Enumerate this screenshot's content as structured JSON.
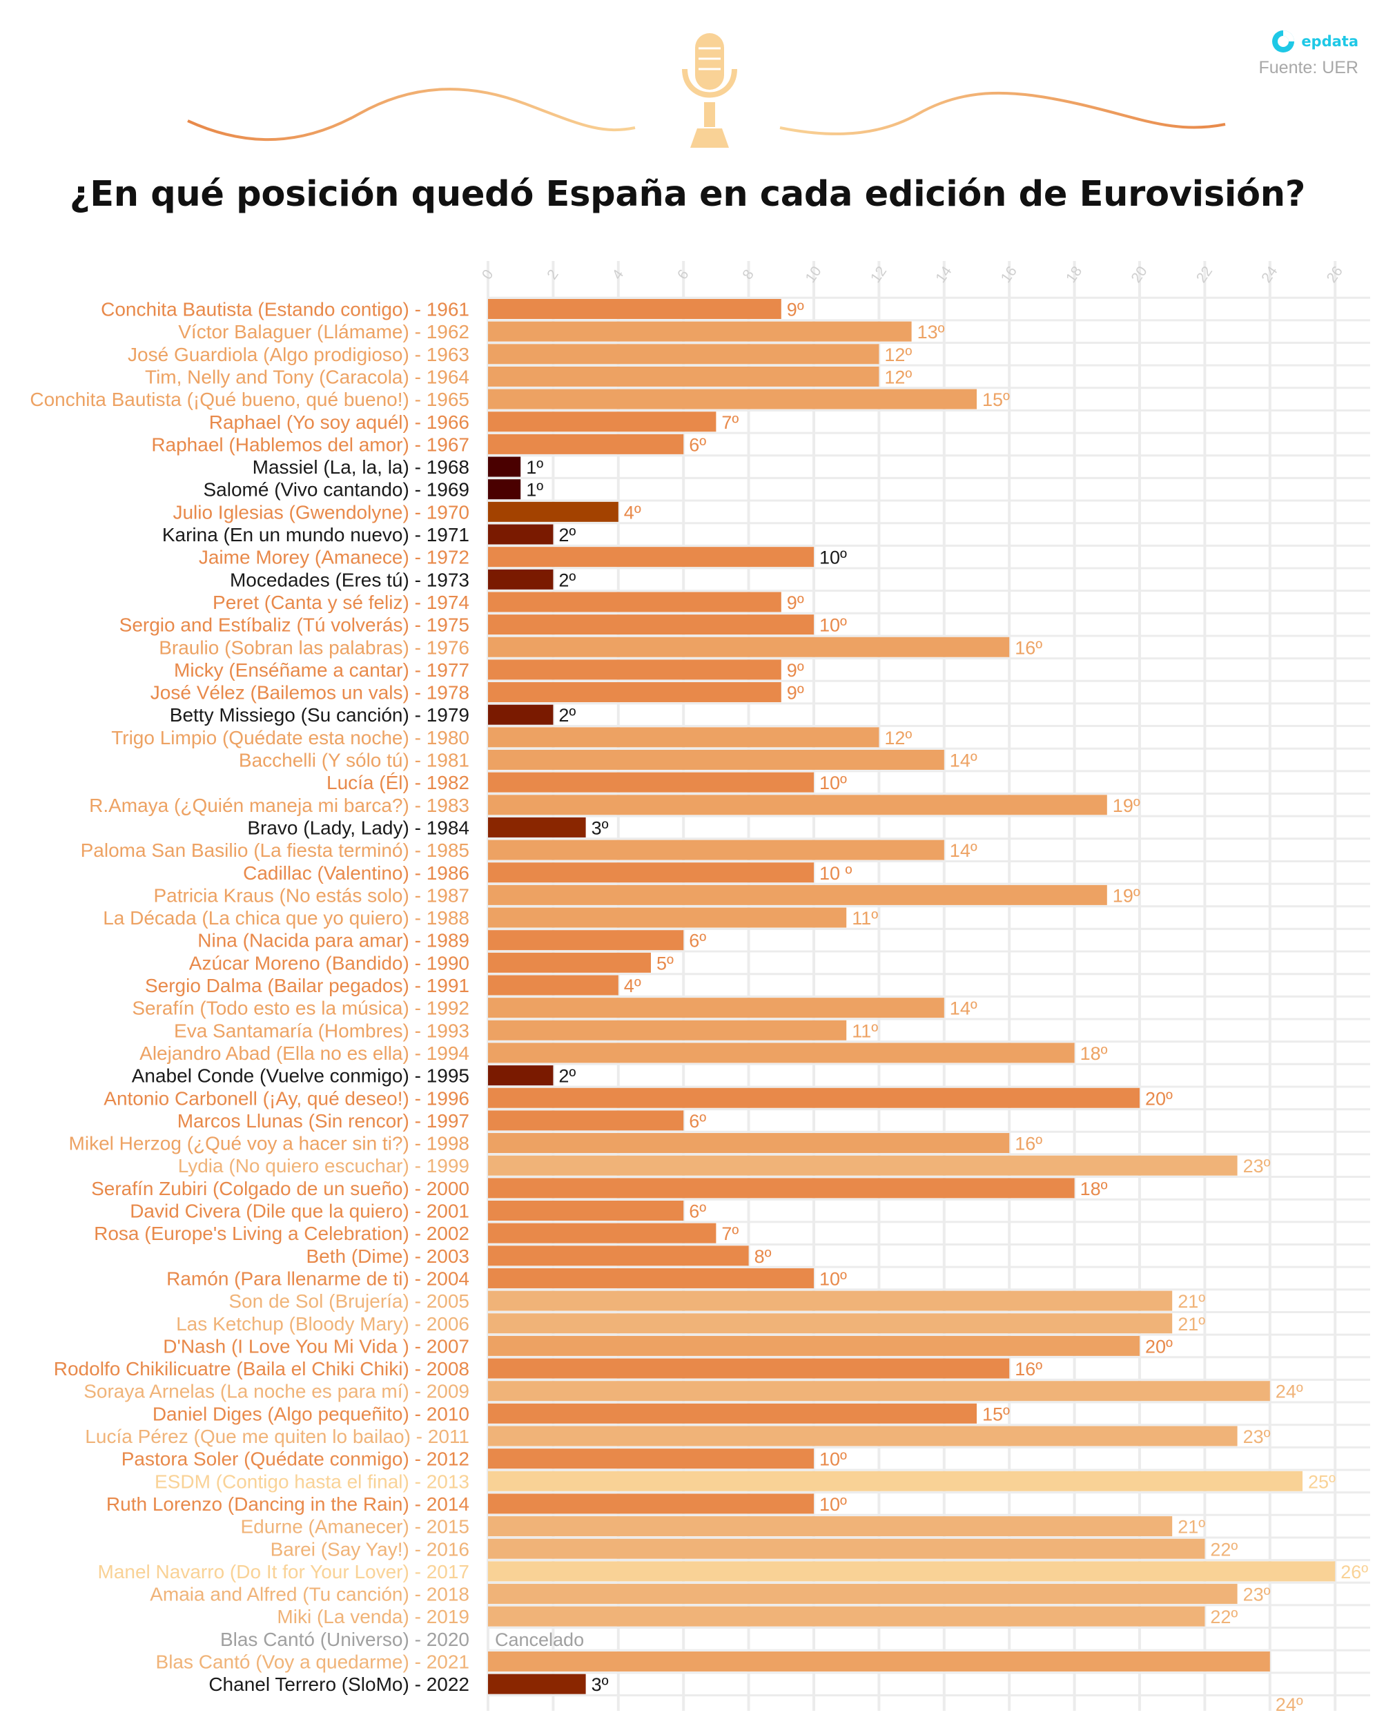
{
  "header": {
    "title": "¿En qué posición quedó España en cada edición de Eurovisión?",
    "brand": "epdata",
    "source": "Fuente: UER"
  },
  "icons": {
    "brand": "epdata-logo-icon",
    "decoration": "microphone-icon"
  },
  "colors": {
    "pos1": "#4a0000",
    "pos2": "#7a1a00",
    "pos3": "#8a2600",
    "pos4_1970": "#a34200",
    "mid": "#e8894a",
    "light": "#eda263",
    "lighter": "#f0b378",
    "lightest": "#f9d296",
    "text_default": "#e8894a",
    "text_dark": "#1a1a1a",
    "text_grey": "#a0a0a0",
    "grid": "#ececec",
    "tick": "#cfcfcf"
  },
  "chart_data": {
    "type": "bar",
    "orientation": "horizontal",
    "title": "¿En qué posición quedó España en cada edición de Eurovisión?",
    "xlabel": "",
    "ylabel": "",
    "xlim": [
      0,
      26
    ],
    "x_ticks": [
      0,
      2,
      4,
      6,
      8,
      10,
      12,
      14,
      16,
      18,
      20,
      22,
      24,
      26
    ],
    "grid": true,
    "categories": [
      "Conchita Bautista (Estando contigo) - 1961",
      "Víctor Balaguer (Llámame) - 1962",
      "José Guardiola (Algo prodigioso) - 1963",
      "Tim, Nelly and Tony (Caracola) - 1964",
      "Conchita Bautista (¡Qué bueno, qué bueno!) - 1965",
      "Raphael (Yo soy aquél) - 1966",
      "Raphael (Hablemos del amor) - 1967",
      "Massiel (La, la, la) - 1968",
      "Salomé (Vivo cantando) - 1969",
      "Julio Iglesias (Gwendolyne) - 1970",
      "Karina (En un mundo nuevo) - 1971",
      "Jaime Morey (Amanece) - 1972",
      "Mocedades (Eres tú) - 1973",
      "Peret (Canta y sé feliz) - 1974",
      "Sergio and Estíbaliz (Tú volverás) - 1975",
      "Braulio (Sobran las palabras) - 1976",
      "Micky (Enséñame a cantar) - 1977",
      "José Vélez (Bailemos un vals) - 1978",
      "Betty Missiego (Su canción) - 1979",
      "Trigo Limpio (Quédate esta noche) - 1980",
      "Bacchelli (Y sólo tú) - 1981",
      "Lucía (Él) - 1982",
      "R.Amaya (¿Quién maneja mi barca?) - 1983",
      "Bravo (Lady, Lady) - 1984",
      "Paloma San Basilio (La fiesta terminó) - 1985",
      "Cadillac (Valentino) - 1986",
      "Patricia Kraus (No estás solo) - 1987",
      "La Década (La chica que yo quiero) - 1988",
      "Nina (Nacida para amar) - 1989",
      "Azúcar Moreno (Bandido) - 1990",
      "Sergio Dalma (Bailar pegados) - 1991",
      "Serafín (Todo esto es la música) - 1992",
      "Eva Santamaría (Hombres) - 1993",
      "Alejandro Abad (Ella no es ella) - 1994",
      "Anabel Conde (Vuelve conmigo) - 1995",
      "Antonio Carbonell (¡Ay, qué deseo!) - 1996",
      "Marcos Llunas (Sin rencor) - 1997",
      "Mikel Herzog (¿Qué voy a hacer sin ti?) - 1998",
      "Lydia (No quiero escuchar) - 1999",
      "Serafín Zubiri (Colgado de un sueño) - 2000",
      "David Civera (Dile que la quiero) - 2001",
      "Rosa (Europe's Living a Celebration) - 2002",
      "Beth (Dime) - 2003",
      "Ramón (Para llenarme de ti) - 2004",
      "Son de Sol (Brujería) - 2005",
      "Las Ketchup (Bloody Mary) - 2006",
      "D'Nash (I Love You Mi Vida ) - 2007",
      "Rodolfo Chikilicuatre (Baila el Chiki Chiki) - 2008",
      "Soraya Arnelas (La noche es para mí) - 2009",
      "Daniel Diges (Algo pequeñito) - 2010",
      "Lucía Pérez (Que me quiten lo bailao) - 2011",
      "Pastora Soler (Quédate conmigo) - 2012",
      "ESDM (Contigo hasta el final) - 2013",
      "Ruth Lorenzo (Dancing in the Rain) - 2014",
      "Edurne (Amanecer) - 2015",
      "Barei (Say Yay!) - 2016",
      "Manel Navarro (Do It for Your Lover) - 2017",
      "Amaia and Alfred (Tu canción) - 2018",
      "Miki (La venda) - 2019",
      "Blas Cantó (Universo) - 2020",
      "Blas Cantó (Voy a quedarme) - 2021",
      "Chanel Terrero (SloMo) - 2022"
    ],
    "values": [
      9,
      13,
      12,
      12,
      15,
      7,
      6,
      1,
      1,
      4,
      2,
      10,
      2,
      9,
      10,
      16,
      9,
      9,
      2,
      12,
      14,
      10,
      19,
      3,
      14,
      10,
      19,
      11,
      6,
      5,
      4,
      14,
      11,
      18,
      2,
      20,
      6,
      16,
      23,
      18,
      6,
      7,
      8,
      10,
      21,
      21,
      20,
      16,
      24,
      15,
      23,
      10,
      25,
      10,
      21,
      22,
      26,
      23,
      22,
      null,
      24,
      3
    ],
    "value_labels": [
      "9º",
      "13º",
      "12º",
      "12º",
      "15º",
      "7º",
      "6º",
      "1º",
      "1º",
      "4º",
      "2º",
      "10º",
      "2º",
      "9º",
      "10º",
      "16º",
      "9º",
      "9º",
      "2º",
      "12º",
      "14º",
      "10º",
      "19º",
      "3º",
      "14º",
      "10 º",
      "19º",
      "11º",
      "6º",
      "5º",
      "4º",
      "14º",
      "11º",
      "18º",
      "2º",
      "20º",
      "6º",
      "16º",
      "23º",
      "18º",
      "6º",
      "7º",
      "8º",
      "10º",
      "21º",
      "21º",
      "20º",
      "16º",
      "24º",
      "15º",
      "23º",
      "10º",
      "25º",
      "10º",
      "21º",
      "22º",
      "26º",
      "23º",
      "22º",
      "Cancelado",
      "24º",
      "3º"
    ],
    "bar_colors": [
      "mid",
      "light",
      "light",
      "light",
      "light",
      "mid",
      "mid",
      "pos1",
      "pos1",
      "pos4_1970",
      "pos2",
      "mid",
      "pos2",
      "mid",
      "mid",
      "light",
      "mid",
      "mid",
      "pos2",
      "light",
      "light",
      "mid",
      "light",
      "pos3",
      "light",
      "mid",
      "light",
      "light",
      "mid",
      "mid",
      "mid",
      "light",
      "light",
      "light",
      "pos2",
      "mid",
      "mid",
      "light",
      "lighter",
      "mid",
      "mid",
      "mid",
      "mid",
      "mid",
      "lighter",
      "lighter",
      "light",
      "mid",
      "lighter",
      "mid",
      "lighter",
      "mid",
      "lightest",
      "mid",
      "lighter",
      "lighter",
      "lightest",
      "lighter",
      "lighter",
      "none",
      "light",
      "pos3"
    ],
    "label_colors": [
      "mid",
      "light",
      "light",
      "light",
      "light",
      "mid",
      "mid",
      "dark",
      "dark",
      "mid",
      "dark",
      "mid",
      "dark",
      "mid",
      "mid",
      "light",
      "mid",
      "mid",
      "dark",
      "light",
      "light",
      "mid",
      "light",
      "dark",
      "light",
      "mid",
      "light",
      "light",
      "mid",
      "mid",
      "mid",
      "light",
      "light",
      "light",
      "dark",
      "mid",
      "mid",
      "light",
      "lighter",
      "mid",
      "mid",
      "mid",
      "mid",
      "mid",
      "lighter",
      "lighter",
      "mid",
      "mid",
      "lighter",
      "mid",
      "lighter",
      "mid",
      "lightest",
      "mid",
      "lighter",
      "lighter",
      "lightest",
      "lighter",
      "lighter",
      "grey",
      "lighter",
      "dark"
    ],
    "value_label_colors": [
      "mid",
      "light",
      "light",
      "light",
      "light",
      "mid",
      "mid",
      "dark",
      "dark",
      "mid",
      "dark",
      "dark",
      "dark",
      "mid",
      "mid",
      "light",
      "mid",
      "mid",
      "dark",
      "light",
      "light",
      "mid",
      "light",
      "dark",
      "light",
      "mid",
      "light",
      "light",
      "mid",
      "mid",
      "mid",
      "light",
      "light",
      "light",
      "dark",
      "mid",
      "mid",
      "light",
      "lighter",
      "mid",
      "mid",
      "mid",
      "mid",
      "mid",
      "lighter",
      "lighter",
      "mid",
      "mid",
      "lighter",
      "mid",
      "lighter",
      "mid",
      "lightest",
      "mid",
      "lighter",
      "lighter",
      "lightest",
      "lighter",
      "lighter",
      "grey",
      "lighter",
      "dark"
    ]
  }
}
